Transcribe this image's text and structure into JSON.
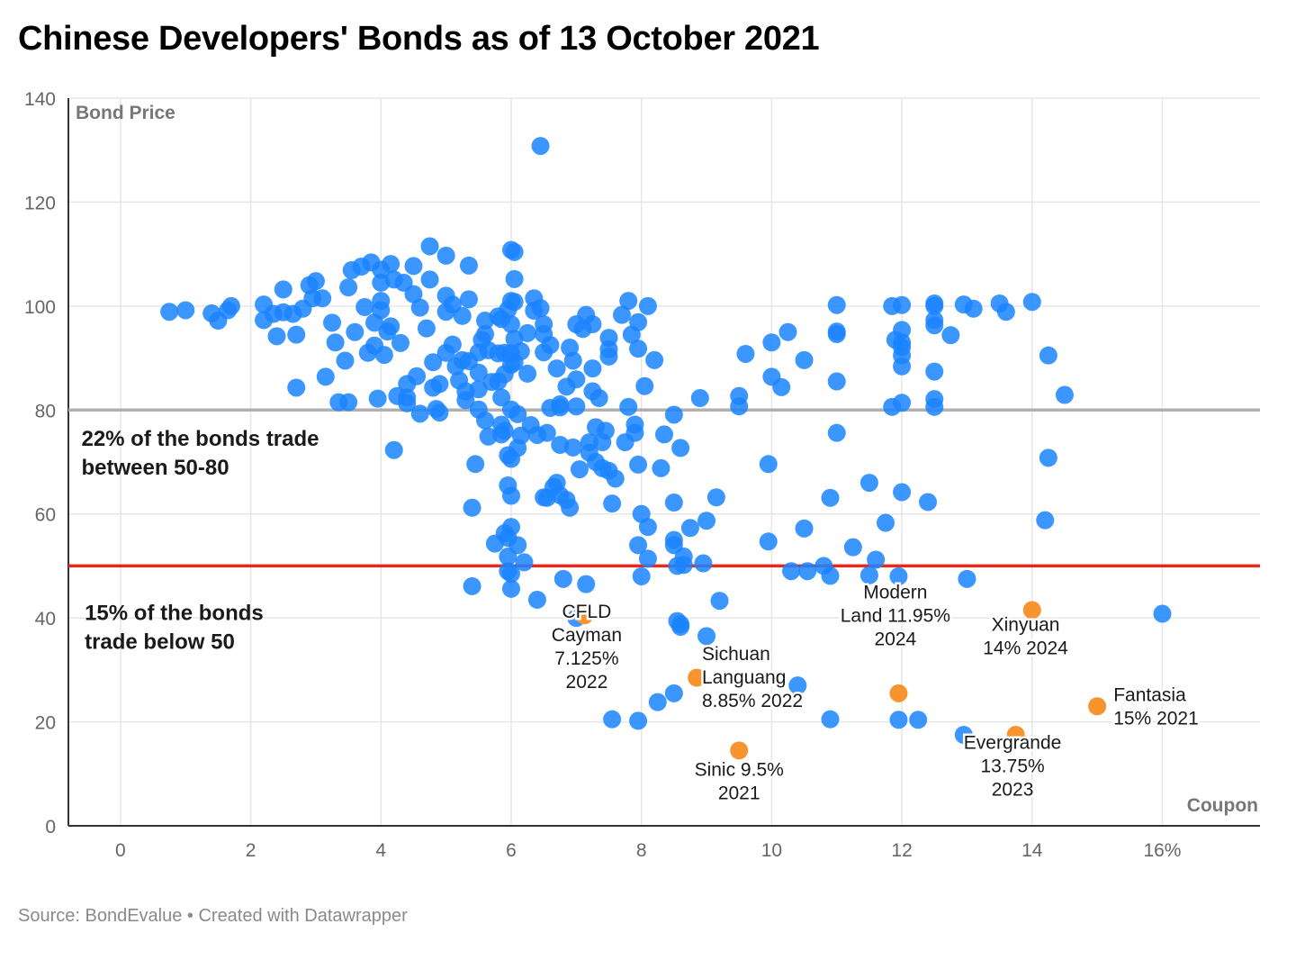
{
  "title": "Chinese Developers' Bonds as of 13 October 2021",
  "source": "Source: BondEvalue • Created with Datawrapper",
  "colors": {
    "bond": "#1a84ff",
    "highlight": "#f7942f",
    "line80": "#b0b0b0",
    "line50": "#e8281c",
    "grid": "#e6e6e6"
  },
  "chart_data": {
    "type": "scatter",
    "title": "Chinese Developers' Bonds as of 13 October 2021",
    "xlabel": "Coupon",
    "ylabel": "Bond Price",
    "xlim": [
      -0.8,
      17.5
    ],
    "ylim": [
      0,
      140
    ],
    "x_ticks": [
      {
        "v": 0,
        "label": "0"
      },
      {
        "v": 2,
        "label": "2"
      },
      {
        "v": 4,
        "label": "4"
      },
      {
        "v": 6,
        "label": "6"
      },
      {
        "v": 8,
        "label": "8"
      },
      {
        "v": 10,
        "label": "10"
      },
      {
        "v": 12,
        "label": "12"
      },
      {
        "v": 14,
        "label": "14"
      },
      {
        "v": 16,
        "label": "16%"
      }
    ],
    "y_ticks": [
      {
        "v": 0,
        "label": "0"
      },
      {
        "v": 20,
        "label": "20"
      },
      {
        "v": 40,
        "label": "40"
      },
      {
        "v": 60,
        "label": "60"
      },
      {
        "v": 80,
        "label": "80"
      },
      {
        "v": 100,
        "label": "100"
      },
      {
        "v": 120,
        "label": "120"
      },
      {
        "v": 140,
        "label": "140"
      }
    ],
    "grid": true,
    "reference_lines": [
      {
        "y": 80,
        "label": "22% of the bonds trade between 50-80"
      },
      {
        "y": 50,
        "label": "15% of the bonds trade below 50"
      }
    ],
    "band_notes": [
      {
        "lines": [
          "22% of the bonds trade",
          "between 50-80"
        ],
        "x": -0.6,
        "y": 74.5
      },
      {
        "lines": [
          "15% of the bonds",
          "trade below 50"
        ],
        "x": -0.55,
        "y": 41.0
      }
    ],
    "highlighted": [
      {
        "name": "CFLD Cayman 7.125% 2022",
        "lines": [
          "CFLD",
          "Cayman",
          "7.125%",
          "2022"
        ],
        "x": 7.125,
        "y": 40.5,
        "lx": 7.16,
        "ly": 34.5
      },
      {
        "name": "Sichuan Languang 8.85% 2022",
        "lines": [
          "Sichuan",
          "Languang",
          "8.85% 2022"
        ],
        "x": 8.85,
        "y": 28.5,
        "lx": 8.93,
        "ly": 28.6,
        "anchor": "start"
      },
      {
        "name": "Sinic 9.5% 2021",
        "lines": [
          "Sinic 9.5%",
          "2021"
        ],
        "x": 9.5,
        "y": 14.5,
        "lx": 9.5,
        "ly": 8.6
      },
      {
        "name": "Modern Land 11.95% 2024",
        "lines": [
          "Modern",
          "Land 11.95%",
          "2024"
        ],
        "x": 11.95,
        "y": 25.5,
        "lx": 11.9,
        "ly": 40.5
      },
      {
        "name": "Xinyuan 14% 2024",
        "lines": [
          "Xinyuan",
          "14% 2024"
        ],
        "x": 14.0,
        "y": 41.5,
        "lx": 13.9,
        "ly": 36.5
      },
      {
        "name": "Evergrande 13.75% 2023",
        "lines": [
          "Evergrande",
          "13.75%",
          "2023"
        ],
        "x": 13.75,
        "y": 17.5,
        "lx": 13.7,
        "ly": 11.5
      },
      {
        "name": "Fantasia 15% 2021",
        "lines": [
          "Fantasia",
          "15% 2021"
        ],
        "x": 15.0,
        "y": 23.0,
        "lx": 15.25,
        "ly": 23.0,
        "anchor": "start"
      }
    ],
    "points": [
      [
        0.75,
        98.9
      ],
      [
        1.0,
        99.2
      ],
      [
        1.4,
        98.6
      ],
      [
        1.5,
        97.2
      ],
      [
        1.65,
        99.2
      ],
      [
        1.7,
        100.0
      ],
      [
        2.2,
        100.3
      ],
      [
        2.2,
        97.3
      ],
      [
        2.35,
        98.5
      ],
      [
        2.4,
        94.2
      ],
      [
        2.5,
        103.2
      ],
      [
        2.5,
        98.8
      ],
      [
        2.65,
        98.5
      ],
      [
        2.7,
        94.5
      ],
      [
        2.7,
        84.3
      ],
      [
        2.8,
        99.5
      ],
      [
        2.9,
        104.0
      ],
      [
        2.95,
        101.5
      ],
      [
        3.0,
        104.8
      ],
      [
        3.1,
        101.5
      ],
      [
        3.15,
        86.4
      ],
      [
        3.25,
        96.8
      ],
      [
        3.3,
        93.0
      ],
      [
        3.35,
        81.5
      ],
      [
        3.45,
        89.5
      ],
      [
        3.5,
        103.6
      ],
      [
        3.5,
        81.5
      ],
      [
        3.55,
        106.9
      ],
      [
        3.6,
        95.0
      ],
      [
        3.7,
        107.6
      ],
      [
        3.75,
        99.8
      ],
      [
        3.8,
        91.0
      ],
      [
        3.85,
        108.4
      ],
      [
        3.9,
        96.8
      ],
      [
        3.9,
        92.4
      ],
      [
        3.95,
        82.2
      ],
      [
        4.0,
        107.0
      ],
      [
        4.0,
        104.5
      ],
      [
        4.0,
        101.0
      ],
      [
        4.0,
        99.2
      ],
      [
        4.05,
        90.6
      ],
      [
        4.1,
        95.1
      ],
      [
        4.15,
        108.1
      ],
      [
        4.15,
        96.1
      ],
      [
        4.2,
        105.1
      ],
      [
        4.2,
        72.3
      ],
      [
        4.25,
        82.7
      ],
      [
        4.3,
        92.9
      ],
      [
        4.35,
        104.5
      ],
      [
        4.4,
        82.4
      ],
      [
        4.4,
        81.3
      ],
      [
        4.4,
        85.0
      ],
      [
        4.5,
        107.7
      ],
      [
        4.5,
        102.3
      ],
      [
        4.55,
        86.5
      ],
      [
        4.6,
        99.7
      ],
      [
        4.6,
        79.3
      ],
      [
        4.7,
        95.7
      ],
      [
        4.75,
        111.5
      ],
      [
        4.75,
        105.1
      ],
      [
        4.8,
        89.2
      ],
      [
        4.8,
        84.3
      ],
      [
        4.85,
        80.2
      ],
      [
        4.9,
        85.0
      ],
      [
        4.9,
        79.5
      ],
      [
        5.0,
        109.7
      ],
      [
        5.0,
        102.0
      ],
      [
        5.0,
        98.9
      ],
      [
        5.0,
        91.0
      ],
      [
        5.1,
        100.3
      ],
      [
        5.1,
        92.6
      ],
      [
        5.15,
        88.4
      ],
      [
        5.2,
        85.7
      ],
      [
        5.25,
        98.1
      ],
      [
        5.25,
        89.6
      ],
      [
        5.3,
        83.6
      ],
      [
        5.3,
        81.9
      ],
      [
        5.35,
        107.8
      ],
      [
        5.35,
        101.3
      ],
      [
        5.35,
        89.4
      ],
      [
        5.4,
        61.2
      ],
      [
        5.4,
        46.1
      ],
      [
        5.45,
        69.6
      ],
      [
        5.5,
        91.1
      ],
      [
        5.5,
        87.2
      ],
      [
        5.5,
        84.0
      ],
      [
        5.5,
        80.1
      ],
      [
        5.55,
        93.5
      ],
      [
        5.6,
        97.2
      ],
      [
        5.6,
        94.6
      ],
      [
        5.6,
        78.0
      ],
      [
        5.65,
        91.5
      ],
      [
        5.65,
        74.9
      ],
      [
        5.7,
        85.4
      ],
      [
        5.75,
        54.3
      ],
      [
        5.8,
        98.0
      ],
      [
        5.8,
        90.9
      ],
      [
        5.8,
        85.5
      ],
      [
        5.85,
        97.5
      ],
      [
        5.85,
        82.4
      ],
      [
        5.85,
        77.2
      ],
      [
        5.85,
        75.3
      ],
      [
        5.9,
        91.0
      ],
      [
        5.9,
        86.9
      ],
      [
        5.9,
        76.0
      ],
      [
        5.9,
        56.3
      ],
      [
        5.95,
        99.3
      ],
      [
        5.95,
        71.3
      ],
      [
        5.95,
        65.5
      ],
      [
        5.95,
        55.4
      ],
      [
        5.95,
        51.8
      ],
      [
        5.95,
        49.0
      ],
      [
        6.0,
        110.8
      ],
      [
        6.0,
        101.0
      ],
      [
        6.0,
        96.5
      ],
      [
        6.0,
        90.9
      ],
      [
        6.0,
        88.7
      ],
      [
        6.0,
        80.1
      ],
      [
        6.0,
        70.6
      ],
      [
        6.0,
        63.5
      ],
      [
        6.0,
        57.5
      ],
      [
        6.0,
        48.5
      ],
      [
        6.0,
        45.6
      ],
      [
        6.05,
        110.4
      ],
      [
        6.05,
        105.2
      ],
      [
        6.05,
        100.8
      ],
      [
        6.05,
        93.7
      ],
      [
        6.05,
        89.2
      ],
      [
        6.1,
        79.2
      ],
      [
        6.1,
        72.7
      ],
      [
        6.1,
        54.0
      ],
      [
        6.15,
        91.3
      ],
      [
        6.15,
        75.1
      ],
      [
        6.2,
        50.7
      ],
      [
        6.25,
        94.8
      ],
      [
        6.25,
        87.0
      ],
      [
        6.3,
        77.1
      ],
      [
        6.35,
        101.5
      ],
      [
        6.35,
        99.1
      ],
      [
        6.4,
        75.2
      ],
      [
        6.4,
        43.5
      ],
      [
        6.45,
        130.8
      ],
      [
        6.45,
        99.6
      ],
      [
        6.5,
        96.5
      ],
      [
        6.5,
        94.6
      ],
      [
        6.5,
        91.1
      ],
      [
        6.5,
        63.2
      ],
      [
        6.55,
        75.6
      ],
      [
        6.55,
        63.1
      ],
      [
        6.6,
        92.5
      ],
      [
        6.6,
        80.4
      ],
      [
        6.65,
        65.2
      ],
      [
        6.7,
        88.0
      ],
      [
        6.7,
        66.0
      ],
      [
        6.75,
        81.1
      ],
      [
        6.75,
        80.5
      ],
      [
        6.75,
        73.3
      ],
      [
        6.75,
        63.6
      ],
      [
        6.8,
        47.5
      ],
      [
        6.85,
        84.5
      ],
      [
        6.85,
        62.7
      ],
      [
        6.9,
        92.0
      ],
      [
        6.9,
        61.2
      ],
      [
        6.95,
        89.5
      ],
      [
        6.95,
        72.8
      ],
      [
        7.0,
        96.5
      ],
      [
        7.0,
        85.9
      ],
      [
        7.0,
        80.7
      ],
      [
        7.05,
        68.6
      ],
      [
        7.1,
        95.6
      ],
      [
        7.15,
        98.3
      ],
      [
        7.15,
        46.5
      ],
      [
        7.2,
        73.8
      ],
      [
        7.2,
        71.8
      ],
      [
        7.25,
        96.5
      ],
      [
        7.25,
        88.0
      ],
      [
        7.25,
        83.6
      ],
      [
        7.3,
        76.7
      ],
      [
        7.3,
        70.0
      ],
      [
        7.35,
        82.3
      ],
      [
        7.4,
        73.8
      ],
      [
        7.4,
        68.8
      ],
      [
        7.45,
        76.0
      ],
      [
        7.5,
        93.9
      ],
      [
        7.5,
        91.7
      ],
      [
        7.5,
        90.3
      ],
      [
        7.5,
        68.3
      ],
      [
        7.55,
        62.0
      ],
      [
        7.6,
        66.8
      ],
      [
        7.7,
        98.3
      ],
      [
        7.75,
        73.8
      ],
      [
        7.8,
        101.0
      ],
      [
        7.8,
        80.6
      ],
      [
        7.85,
        94.5
      ],
      [
        7.9,
        77.2
      ],
      [
        7.9,
        75.6
      ],
      [
        7.95,
        96.9
      ],
      [
        7.95,
        91.8
      ],
      [
        7.95,
        69.5
      ],
      [
        7.95,
        54.0
      ],
      [
        8.0,
        60.0
      ],
      [
        8.0,
        48.0
      ],
      [
        8.05,
        84.6
      ],
      [
        8.1,
        100.0
      ],
      [
        8.1,
        51.4
      ],
      [
        8.1,
        57.5
      ],
      [
        8.2,
        89.6
      ],
      [
        8.3,
        68.8
      ],
      [
        8.35,
        75.3
      ],
      [
        8.5,
        79.1
      ],
      [
        8.5,
        62.2
      ],
      [
        8.5,
        55.0
      ],
      [
        8.5,
        54.0
      ],
      [
        8.55,
        50.0
      ],
      [
        8.55,
        39.4
      ],
      [
        8.6,
        72.7
      ],
      [
        8.65,
        51.8
      ],
      [
        8.65,
        50.2
      ],
      [
        8.75,
        57.3
      ],
      [
        8.9,
        82.3
      ],
      [
        8.95,
        50.5
      ],
      [
        9.0,
        58.7
      ],
      [
        9.15,
        63.2
      ],
      [
        9.2,
        43.3
      ],
      [
        9.5,
        82.7
      ],
      [
        9.5,
        80.7
      ],
      [
        9.6,
        90.8
      ],
      [
        9.95,
        69.6
      ],
      [
        9.95,
        54.7
      ],
      [
        10.0,
        93.0
      ],
      [
        10.0,
        86.4
      ],
      [
        10.15,
        84.4
      ],
      [
        10.25,
        95.0
      ],
      [
        10.3,
        49.0
      ],
      [
        10.5,
        89.6
      ],
      [
        10.5,
        57.2
      ],
      [
        10.55,
        49.0
      ],
      [
        10.8,
        50.0
      ],
      [
        10.9,
        48.1
      ],
      [
        10.9,
        63.1
      ],
      [
        11.0,
        100.2
      ],
      [
        11.0,
        95.1
      ],
      [
        11.0,
        94.6
      ],
      [
        11.0,
        85.5
      ],
      [
        11.0,
        75.6
      ],
      [
        11.25,
        53.6
      ],
      [
        11.5,
        66.0
      ],
      [
        11.5,
        48.2
      ],
      [
        11.6,
        51.2
      ],
      [
        11.75,
        58.3
      ],
      [
        11.85,
        100.0
      ],
      [
        11.85,
        80.6
      ],
      [
        11.9,
        93.5
      ],
      [
        11.95,
        48.0
      ],
      [
        12.0,
        100.2
      ],
      [
        12.0,
        95.4
      ],
      [
        12.0,
        93.0
      ],
      [
        12.0,
        92.1
      ],
      [
        12.0,
        90.5
      ],
      [
        12.0,
        88.4
      ],
      [
        12.0,
        81.4
      ],
      [
        12.0,
        64.2
      ],
      [
        12.4,
        62.3
      ],
      [
        12.5,
        100.5
      ],
      [
        12.5,
        100.0
      ],
      [
        12.5,
        97.3
      ],
      [
        12.5,
        96.3
      ],
      [
        12.5,
        87.4
      ],
      [
        12.5,
        82.1
      ],
      [
        12.5,
        80.6
      ],
      [
        12.75,
        94.4
      ],
      [
        12.95,
        100.3
      ],
      [
        13.0,
        47.5
      ],
      [
        13.1,
        99.5
      ],
      [
        13.5,
        100.5
      ],
      [
        13.6,
        98.9
      ],
      [
        14.0,
        100.8
      ],
      [
        14.2,
        58.8
      ],
      [
        14.25,
        70.8
      ],
      [
        14.25,
        90.5
      ],
      [
        14.5,
        82.9
      ],
      [
        16.0,
        40.8
      ],
      [
        7.0,
        40.0
      ],
      [
        7.55,
        20.5
      ],
      [
        7.95,
        20.2
      ],
      [
        8.25,
        23.8
      ],
      [
        8.5,
        25.5
      ],
      [
        8.6,
        38.8
      ],
      [
        8.6,
        38.3
      ],
      [
        9.0,
        36.5
      ],
      [
        10.4,
        27.0
      ],
      [
        10.9,
        20.5
      ],
      [
        11.95,
        20.4
      ],
      [
        12.25,
        20.4
      ],
      [
        12.95,
        17.5
      ]
    ]
  }
}
